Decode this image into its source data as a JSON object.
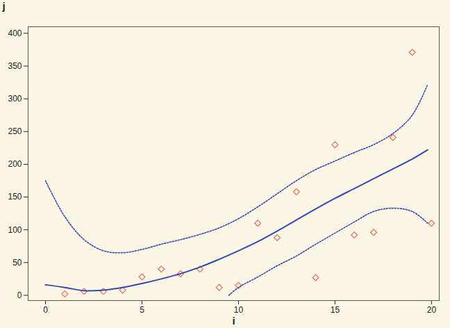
{
  "chart_data": {
    "type": "scatter",
    "x_label": "i",
    "y_label": "j",
    "xlim": [
      -0.9,
      20.4
    ],
    "xticks": [
      0,
      5,
      10,
      15,
      20
    ],
    "ylim": [
      -8,
      410
    ],
    "yticks": [
      0,
      50,
      100,
      150,
      200,
      250,
      300,
      350,
      400
    ],
    "grid": false,
    "series": [
      {
        "type": "scatter",
        "marker": "diamond",
        "color": "#e0705a",
        "x": [
          1,
          2,
          3,
          4,
          5,
          6,
          7,
          8,
          9,
          10,
          11,
          12,
          13,
          14,
          15,
          16,
          17,
          18,
          19,
          20
        ],
        "values": [
          2,
          6,
          6,
          8,
          28,
          40,
          33,
          40,
          12,
          15,
          110,
          88,
          158,
          27,
          230,
          92,
          96,
          241,
          371,
          110
        ]
      },
      {
        "type": "line",
        "line_style": "solid",
        "color": "#3446b8",
        "x": [
          0,
          1,
          2,
          3,
          4,
          5,
          6,
          7,
          8,
          9,
          10,
          11,
          12,
          13,
          14,
          15,
          16,
          17,
          18,
          19,
          19.8
        ],
        "values": [
          16,
          12,
          7,
          8,
          12,
          18,
          25,
          33,
          43,
          55,
          68,
          82,
          98,
          115,
          132,
          148,
          163,
          178,
          193,
          208,
          222
        ]
      },
      {
        "type": "line",
        "line_style": "dotted",
        "color": "#3446b8",
        "x": [
          0,
          1,
          2,
          3,
          4,
          5,
          6,
          7,
          8,
          9,
          10,
          11,
          12,
          13,
          14,
          15,
          16,
          17,
          18,
          19,
          19.8
        ],
        "values": [
          175,
          120,
          85,
          68,
          65,
          70,
          78,
          85,
          93,
          103,
          117,
          135,
          155,
          175,
          192,
          205,
          218,
          230,
          247,
          275,
          322
        ]
      },
      {
        "type": "line",
        "line_style": "dotted",
        "color": "#3446b8",
        "x": [
          9.5,
          10,
          11,
          12,
          13,
          14,
          15,
          16,
          17,
          18,
          19,
          19.8
        ],
        "values": [
          0,
          12,
          28,
          45,
          60,
          78,
          95,
          112,
          128,
          133,
          128,
          110
        ]
      }
    ]
  }
}
